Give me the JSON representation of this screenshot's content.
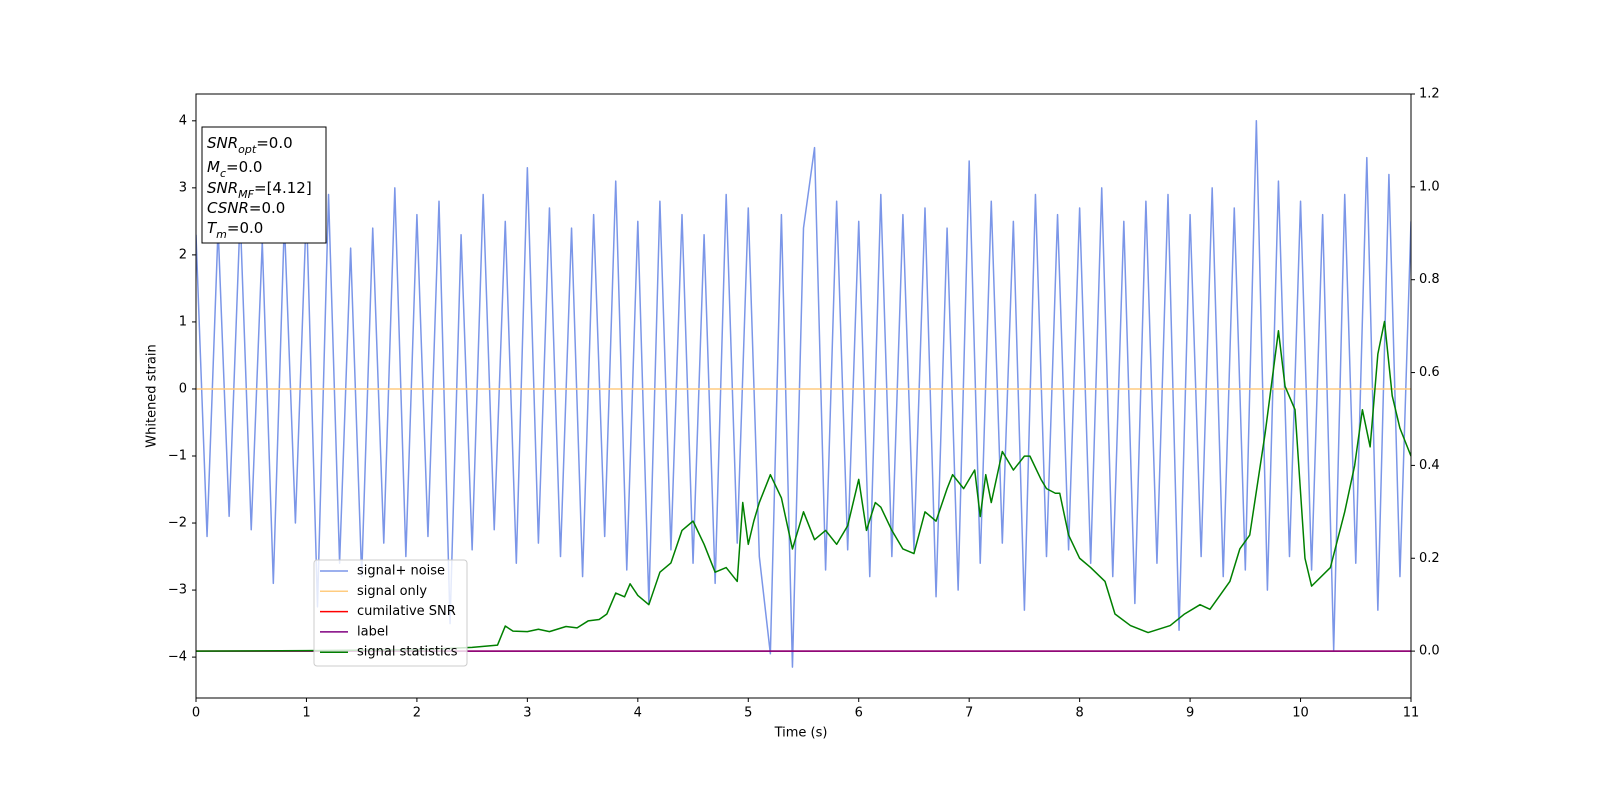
{
  "chart_data": {
    "type": "line",
    "x_label": "Time (s)",
    "y_label": "Whitened strain",
    "xlim": [
      0,
      11
    ],
    "xticks": [
      0,
      1,
      2,
      3,
      4,
      5,
      6,
      7,
      8,
      9,
      10,
      11
    ],
    "ylim": [
      -4.61,
      4.4
    ],
    "yticks": [
      {
        "value": -4,
        "label": "−4"
      },
      {
        "value": -3,
        "label": "−3"
      },
      {
        "value": -2,
        "label": "−2"
      },
      {
        "value": -1,
        "label": "−1"
      },
      0,
      1,
      2,
      3,
      4
    ],
    "y2lim": [
      -0.101,
      1.2
    ],
    "y2ticks": [
      {
        "value": 0,
        "label": "0.0"
      },
      0.2,
      0.4,
      0.6,
      0.8,
      {
        "value": 1,
        "label": "1.0"
      },
      1.2
    ],
    "legend": "lower left",
    "annotations": [
      {
        "symbol": "SNR",
        "subscript": "opt",
        "text": "=0.0"
      },
      {
        "symbol": "M",
        "subscript": "c",
        "text": "=0.0"
      },
      {
        "symbol": "SNR",
        "subscript": "MF",
        "text": "=[4.12]"
      },
      {
        "symbol": "CSNR",
        "text": "=0.0"
      },
      {
        "symbol": "T",
        "subscript": "m",
        "text": "=0.0"
      }
    ],
    "series": [
      {
        "name": "signal+ noise",
        "color": "#7b96e8",
        "x": [
          0,
          0.1,
          0.2,
          0.3,
          0.4,
          0.5,
          0.6,
          0.7,
          0.8,
          0.9,
          1,
          1.1,
          1.2,
          1.3,
          1.4,
          1.5,
          1.6,
          1.7,
          1.8,
          1.9,
          2,
          2.1,
          2.2,
          2.3,
          2.4,
          2.5,
          2.6,
          2.7,
          2.8,
          2.9,
          3,
          3.1,
          3.2,
          3.3,
          3.4,
          3.5,
          3.6,
          3.7,
          3.8,
          3.9,
          4,
          4.1,
          4.2,
          4.3,
          4.4,
          4.5,
          4.6,
          4.7,
          4.8,
          4.9,
          5,
          5.1,
          5.2,
          5.3,
          5.4,
          5.5,
          5.6,
          5.7,
          5.8,
          5.9,
          6,
          6.1,
          6.2,
          6.3,
          6.4,
          6.5,
          6.6,
          6.7,
          6.8,
          6.9,
          7,
          7.1,
          7.2,
          7.3,
          7.4,
          7.5,
          7.6,
          7.7,
          7.8,
          7.9,
          8,
          8.1,
          8.2,
          8.3,
          8.4,
          8.5,
          8.6,
          8.7,
          8.8,
          8.9,
          9,
          9.1,
          9.2,
          9.3,
          9.4,
          9.5,
          9.6,
          9.7,
          9.8,
          9.9,
          10,
          10.1,
          10.2,
          10.3,
          10.4,
          10.5,
          10.6,
          10.7,
          10.8,
          10.9,
          11
        ],
        "values": [
          2.3,
          -2.2,
          2.4,
          -1.9,
          2.6,
          -2.1,
          2.2,
          -2.9,
          2.5,
          -2.0,
          2.7,
          -3.25,
          2.9,
          -2.6,
          2.1,
          -2.8,
          2.4,
          -2.3,
          3.0,
          -2.5,
          2.6,
          -2.2,
          2.8,
          -3.5,
          2.3,
          -2.4,
          2.9,
          -2.1,
          2.5,
          -2.6,
          3.3,
          -2.3,
          2.7,
          -2.5,
          2.4,
          -2.8,
          2.6,
          -2.2,
          3.1,
          -2.7,
          2.5,
          -3.2,
          2.8,
          -2.4,
          2.6,
          -2.6,
          2.3,
          -2.9,
          2.9,
          -2.3,
          2.7,
          -2.5,
          -3.95,
          2.6,
          -4.15,
          2.4,
          3.6,
          -2.7,
          2.8,
          -2.4,
          2.5,
          -2.8,
          2.9,
          -2.5,
          2.6,
          -2.4,
          2.7,
          -3.1,
          2.4,
          -3.0,
          3.4,
          -2.6,
          2.8,
          -2.3,
          2.5,
          -3.3,
          2.9,
          -2.5,
          2.6,
          -2.4,
          2.7,
          -2.6,
          3.0,
          -2.8,
          2.5,
          -3.2,
          2.8,
          -2.6,
          2.9,
          -3.6,
          2.6,
          -2.5,
          3.0,
          -2.8,
          2.7,
          -2.7,
          4.0,
          -3.0,
          3.1,
          -2.5,
          2.8,
          -2.7,
          2.6,
          -3.9,
          2.9,
          -2.6,
          3.45,
          -3.3,
          3.2,
          -2.8,
          2.5
        ]
      },
      {
        "name": "signal only",
        "color": "#ffcc80",
        "x": [
          0,
          11
        ],
        "values": [
          0,
          0
        ]
      },
      {
        "name": "cumilative SNR",
        "color": "#ff0000",
        "axis": "y2",
        "x": [
          0,
          11
        ],
        "values": [
          0,
          0
        ]
      },
      {
        "name": "label",
        "color": "#800080",
        "axis": "y2",
        "x": [
          0,
          11
        ],
        "values": [
          0,
          0
        ]
      },
      {
        "name": "signal statistics",
        "color": "#008000",
        "axis": "y2",
        "x": [
          0,
          1,
          2,
          2.5,
          2.73,
          2.8,
          2.87,
          3.0,
          3.1,
          3.2,
          3.35,
          3.45,
          3.55,
          3.65,
          3.72,
          3.8,
          3.88,
          3.93,
          4.0,
          4.1,
          4.2,
          4.3,
          4.4,
          4.5,
          4.6,
          4.7,
          4.8,
          4.9,
          4.95,
          5.0,
          5.05,
          5.1,
          5.2,
          5.3,
          5.4,
          5.5,
          5.6,
          5.7,
          5.8,
          5.9,
          6.0,
          6.07,
          6.15,
          6.2,
          6.3,
          6.4,
          6.5,
          6.6,
          6.7,
          6.8,
          6.85,
          6.95,
          7.05,
          7.1,
          7.15,
          7.2,
          7.3,
          7.4,
          7.5,
          7.55,
          7.65,
          7.7,
          7.78,
          7.82,
          7.9,
          8.0,
          8.1,
          8.23,
          8.32,
          8.46,
          8.62,
          8.82,
          8.95,
          9.09,
          9.18,
          9.27,
          9.36,
          9.45,
          9.54,
          9.68,
          9.8,
          9.86,
          9.95,
          10.04,
          10.1,
          10.27,
          10.4,
          10.49,
          10.56,
          10.63,
          10.7,
          10.76,
          10.83,
          10.9,
          11
        ],
        "values": [
          0,
          0.001,
          0.003,
          0.008,
          0.013,
          0.054,
          0.043,
          0.042,
          0.047,
          0.042,
          0.053,
          0.05,
          0.065,
          0.068,
          0.08,
          0.125,
          0.117,
          0.145,
          0.12,
          0.1,
          0.17,
          0.19,
          0.26,
          0.28,
          0.23,
          0.17,
          0.18,
          0.15,
          0.32,
          0.23,
          0.28,
          0.32,
          0.38,
          0.33,
          0.22,
          0.3,
          0.24,
          0.26,
          0.23,
          0.27,
          0.37,
          0.26,
          0.32,
          0.31,
          0.26,
          0.22,
          0.21,
          0.3,
          0.28,
          0.35,
          0.38,
          0.35,
          0.39,
          0.29,
          0.38,
          0.32,
          0.43,
          0.39,
          0.42,
          0.42,
          0.37,
          0.35,
          0.34,
          0.34,
          0.25,
          0.2,
          0.18,
          0.15,
          0.08,
          0.055,
          0.04,
          0.055,
          0.08,
          0.1,
          0.09,
          0.12,
          0.15,
          0.22,
          0.25,
          0.47,
          0.69,
          0.57,
          0.52,
          0.2,
          0.14,
          0.18,
          0.3,
          0.4,
          0.52,
          0.44,
          0.64,
          0.71,
          0.55,
          0.48,
          0.42
        ]
      }
    ]
  }
}
